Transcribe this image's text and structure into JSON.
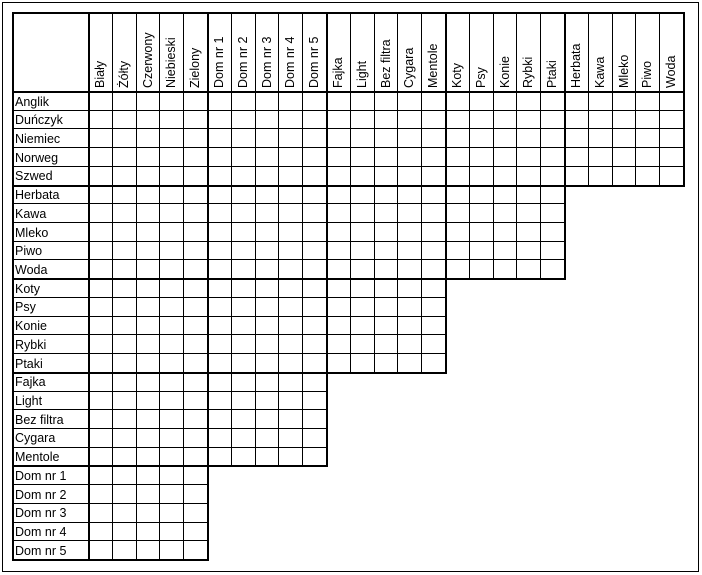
{
  "column_groups": [
    {
      "name": "colors",
      "labels": [
        "Biały",
        "Żółty",
        "Czerwony",
        "Niebieski",
        "Zielony"
      ]
    },
    {
      "name": "houses",
      "labels": [
        "Dom nr 1",
        "Dom nr 2",
        "Dom nr 3",
        "Dom nr 4",
        "Dom nr 5"
      ]
    },
    {
      "name": "smokes",
      "labels": [
        "Fajka",
        "Light",
        "Bez filtra",
        "Cygara",
        "Mentole"
      ]
    },
    {
      "name": "pets",
      "labels": [
        "Koty",
        "Psy",
        "Konie",
        "Rybki",
        "Ptaki"
      ]
    },
    {
      "name": "drinks",
      "labels": [
        "Herbata",
        "Kawa",
        "Mleko",
        "Piwo",
        "Woda"
      ]
    }
  ],
  "row_groups": [
    {
      "name": "nationalities",
      "labels": [
        "Anglik",
        "Duńczyk",
        "Niemiec",
        "Norweg",
        "Szwed"
      ]
    },
    {
      "name": "drinks",
      "labels": [
        "Herbata",
        "Kawa",
        "Mleko",
        "Piwo",
        "Woda"
      ]
    },
    {
      "name": "pets",
      "labels": [
        "Koty",
        "Psy",
        "Konie",
        "Rybki",
        "Ptaki"
      ]
    },
    {
      "name": "smokes",
      "labels": [
        "Fajka",
        "Light",
        "Bez filtra",
        "Cygara",
        "Mentole"
      ]
    },
    {
      "name": "houses",
      "labels": [
        "Dom nr 1",
        "Dom nr 2",
        "Dom nr 3",
        "Dom nr 4",
        "Dom nr 5"
      ]
    }
  ]
}
